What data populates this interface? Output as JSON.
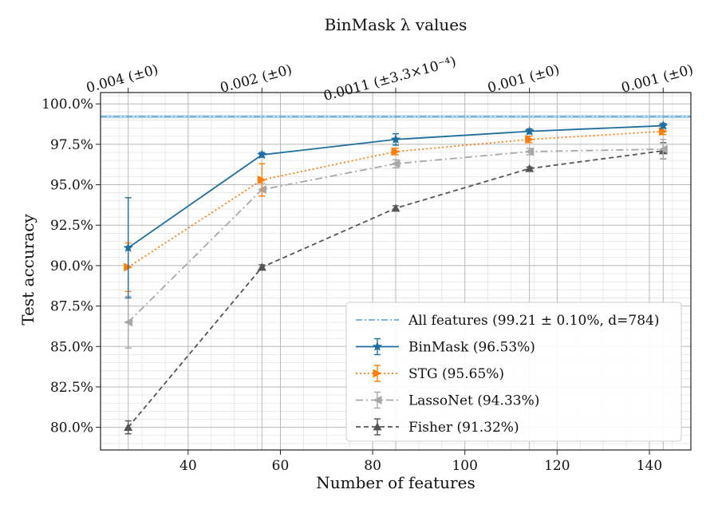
{
  "chart_data": {
    "type": "line",
    "title": "BinMask λ values",
    "xlabel": "Number of features",
    "ylabel": "Test accuracy",
    "xlim": [
      21,
      149
    ],
    "ylim": [
      78.6,
      100.7
    ],
    "x_ticks": [
      40,
      60,
      80,
      100,
      120,
      140
    ],
    "x_tick_labels": [
      "40",
      "60",
      "80",
      "100",
      "120",
      "140"
    ],
    "y_ticks": [
      80.0,
      82.5,
      85.0,
      87.5,
      90.0,
      92.5,
      95.0,
      97.5,
      100.0
    ],
    "y_tick_labels": [
      "80.0%",
      "82.5%",
      "85.0%",
      "87.5%",
      "90.0%",
      "92.5%",
      "95.0%",
      "97.5%",
      "100.0%"
    ],
    "grid": true,
    "top_axis": {
      "positions": [
        27,
        56,
        85,
        114,
        143
      ],
      "labels": [
        "0.004 (±0)",
        "0.002 (±0)",
        "0.0011 (±3.3×10⁻⁴)",
        "0.001 (±0)",
        "0.001 (±0)"
      ]
    },
    "reference_line": {
      "name": "All features (99.21 ± 0.10%, d=784)",
      "value": 99.21,
      "band": 0.1,
      "color": "#6aaed6"
    },
    "series": [
      {
        "name": "BinMask (96.53%)",
        "color": "#1f6e9e",
        "dash": "",
        "marker": "star",
        "x": [
          27,
          56,
          85,
          114,
          143
        ],
        "values": [
          91.1,
          96.85,
          97.8,
          98.3,
          98.65
        ],
        "errors": [
          3.1,
          0.15,
          0.35,
          0.15,
          0.15
        ]
      },
      {
        "name": "STG (95.65%)",
        "color": "#ff7f0e",
        "dash": "2,3",
        "marker": "triangle-right",
        "x": [
          27,
          56,
          85,
          114,
          143
        ],
        "values": [
          89.9,
          95.3,
          97.05,
          97.8,
          98.3
        ],
        "errors": [
          1.5,
          1.0,
          0.2,
          0.2,
          0.2
        ]
      },
      {
        "name": "LassoNet (94.33%)",
        "color": "#a8a8a8",
        "dash": "9,4,2,4",
        "marker": "triangle-left",
        "x": [
          27,
          56,
          85,
          114,
          143
        ],
        "values": [
          86.5,
          94.7,
          96.3,
          97.05,
          97.2
        ],
        "errors": [
          1.6,
          0.4,
          0.25,
          0.2,
          0.6
        ]
      },
      {
        "name": "Fisher (91.32%)",
        "color": "#555555",
        "dash": "6,4",
        "marker": "triangle-up",
        "x": [
          27,
          56,
          85,
          114,
          143
        ],
        "values": [
          80.0,
          89.9,
          93.55,
          96.0,
          97.1
        ],
        "errors": [
          0.4,
          0.15,
          0.15,
          0.1,
          0.5
        ]
      }
    ],
    "legend_position": "bottom-right"
  }
}
